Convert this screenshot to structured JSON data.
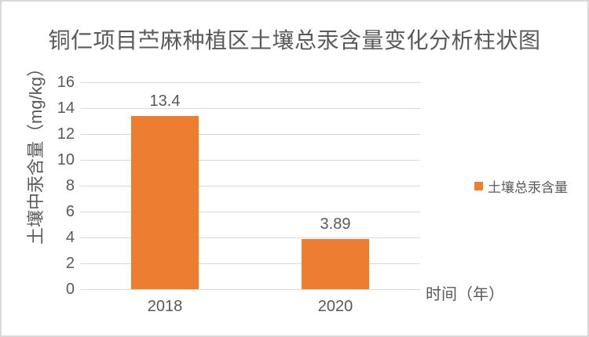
{
  "frame": {
    "background": "#ffffff",
    "border_color": "#d9d9d9"
  },
  "chart_data": {
    "type": "bar",
    "title": "铜仁项目苎麻种植区土壤总汞含量变化分析柱状图",
    "categories": [
      "2018",
      "2020"
    ],
    "series": [
      {
        "name": "土壤总汞含量",
        "values": [
          13.4,
          3.89
        ],
        "data_labels": [
          "13.4",
          "3.89"
        ],
        "color": "#ED7D31"
      }
    ],
    "xlabel": "时间（年）",
    "ylabel": "土壤中汞含量（mg/kg）",
    "ylim": [
      0,
      16
    ],
    "yticks": [
      0,
      2,
      4,
      6,
      8,
      10,
      12,
      14,
      16
    ],
    "grid": true,
    "legend_position": "right",
    "gridline_color": "#d9d9d9",
    "text_color": "#595959"
  }
}
